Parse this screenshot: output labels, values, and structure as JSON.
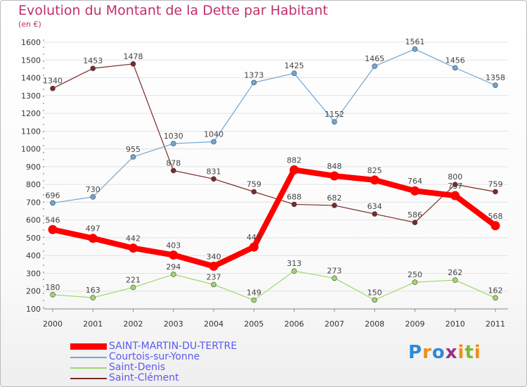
{
  "title": "Evolution du Montant de la Dette par Habitant",
  "subtitle": "(en €)",
  "logo": {
    "text": "Proxiti",
    "letters": [
      {
        "ch": "P",
        "color": "#2c8ad8"
      },
      {
        "ch": "r",
        "color": "#f08c1a"
      },
      {
        "ch": "o",
        "color": "#2c8ad8"
      },
      {
        "ch": "x",
        "color": "#9c2f86"
      },
      {
        "ch": "i",
        "color": "#f08c1a"
      },
      {
        "ch": "t",
        "color": "#7fb92e"
      },
      {
        "ch": "i",
        "color": "#f08c1a"
      }
    ]
  },
  "chart_data": {
    "type": "line",
    "x": [
      "2000",
      "2001",
      "2002",
      "2003",
      "2004",
      "2005",
      "2006",
      "2007",
      "2008",
      "2009",
      "2010",
      "2011"
    ],
    "ylim": [
      100,
      1600
    ],
    "yticks": [
      100,
      200,
      300,
      400,
      500,
      600,
      700,
      800,
      900,
      1000,
      1100,
      1200,
      1300,
      1400,
      1500,
      1600
    ],
    "grid": "horizontal",
    "legend_position": "bottom-left",
    "series": [
      {
        "name": "Saint-Clément",
        "color": "#7a2a2a",
        "emphasis": false,
        "values": [
          1340,
          1453,
          1478,
          878,
          831,
          759,
          688,
          682,
          634,
          586,
          800,
          759
        ]
      },
      {
        "name": "Courtois-sur-Yonne",
        "color": "#6fa6d6",
        "emphasis": false,
        "values": [
          696,
          730,
          955,
          1030,
          1040,
          1373,
          1425,
          1152,
          1465,
          1561,
          1456,
          1358
        ]
      },
      {
        "name": "Saint-Denis",
        "color": "#9fd86a",
        "emphasis": false,
        "values": [
          180,
          163,
          221,
          294,
          237,
          149,
          313,
          273,
          150,
          250,
          262,
          162
        ]
      },
      {
        "name": "SAINT-MARTIN-DU-TERTRE",
        "color": "#ff0000",
        "emphasis": true,
        "values": [
          546,
          497,
          442,
          403,
          340,
          448,
          882,
          848,
          825,
          764,
          737,
          568
        ]
      }
    ],
    "legend_order": [
      "SAINT-MARTIN-DU-TERTRE",
      "Courtois-sur-Yonne",
      "Saint-Denis",
      "Saint-Clément"
    ]
  }
}
